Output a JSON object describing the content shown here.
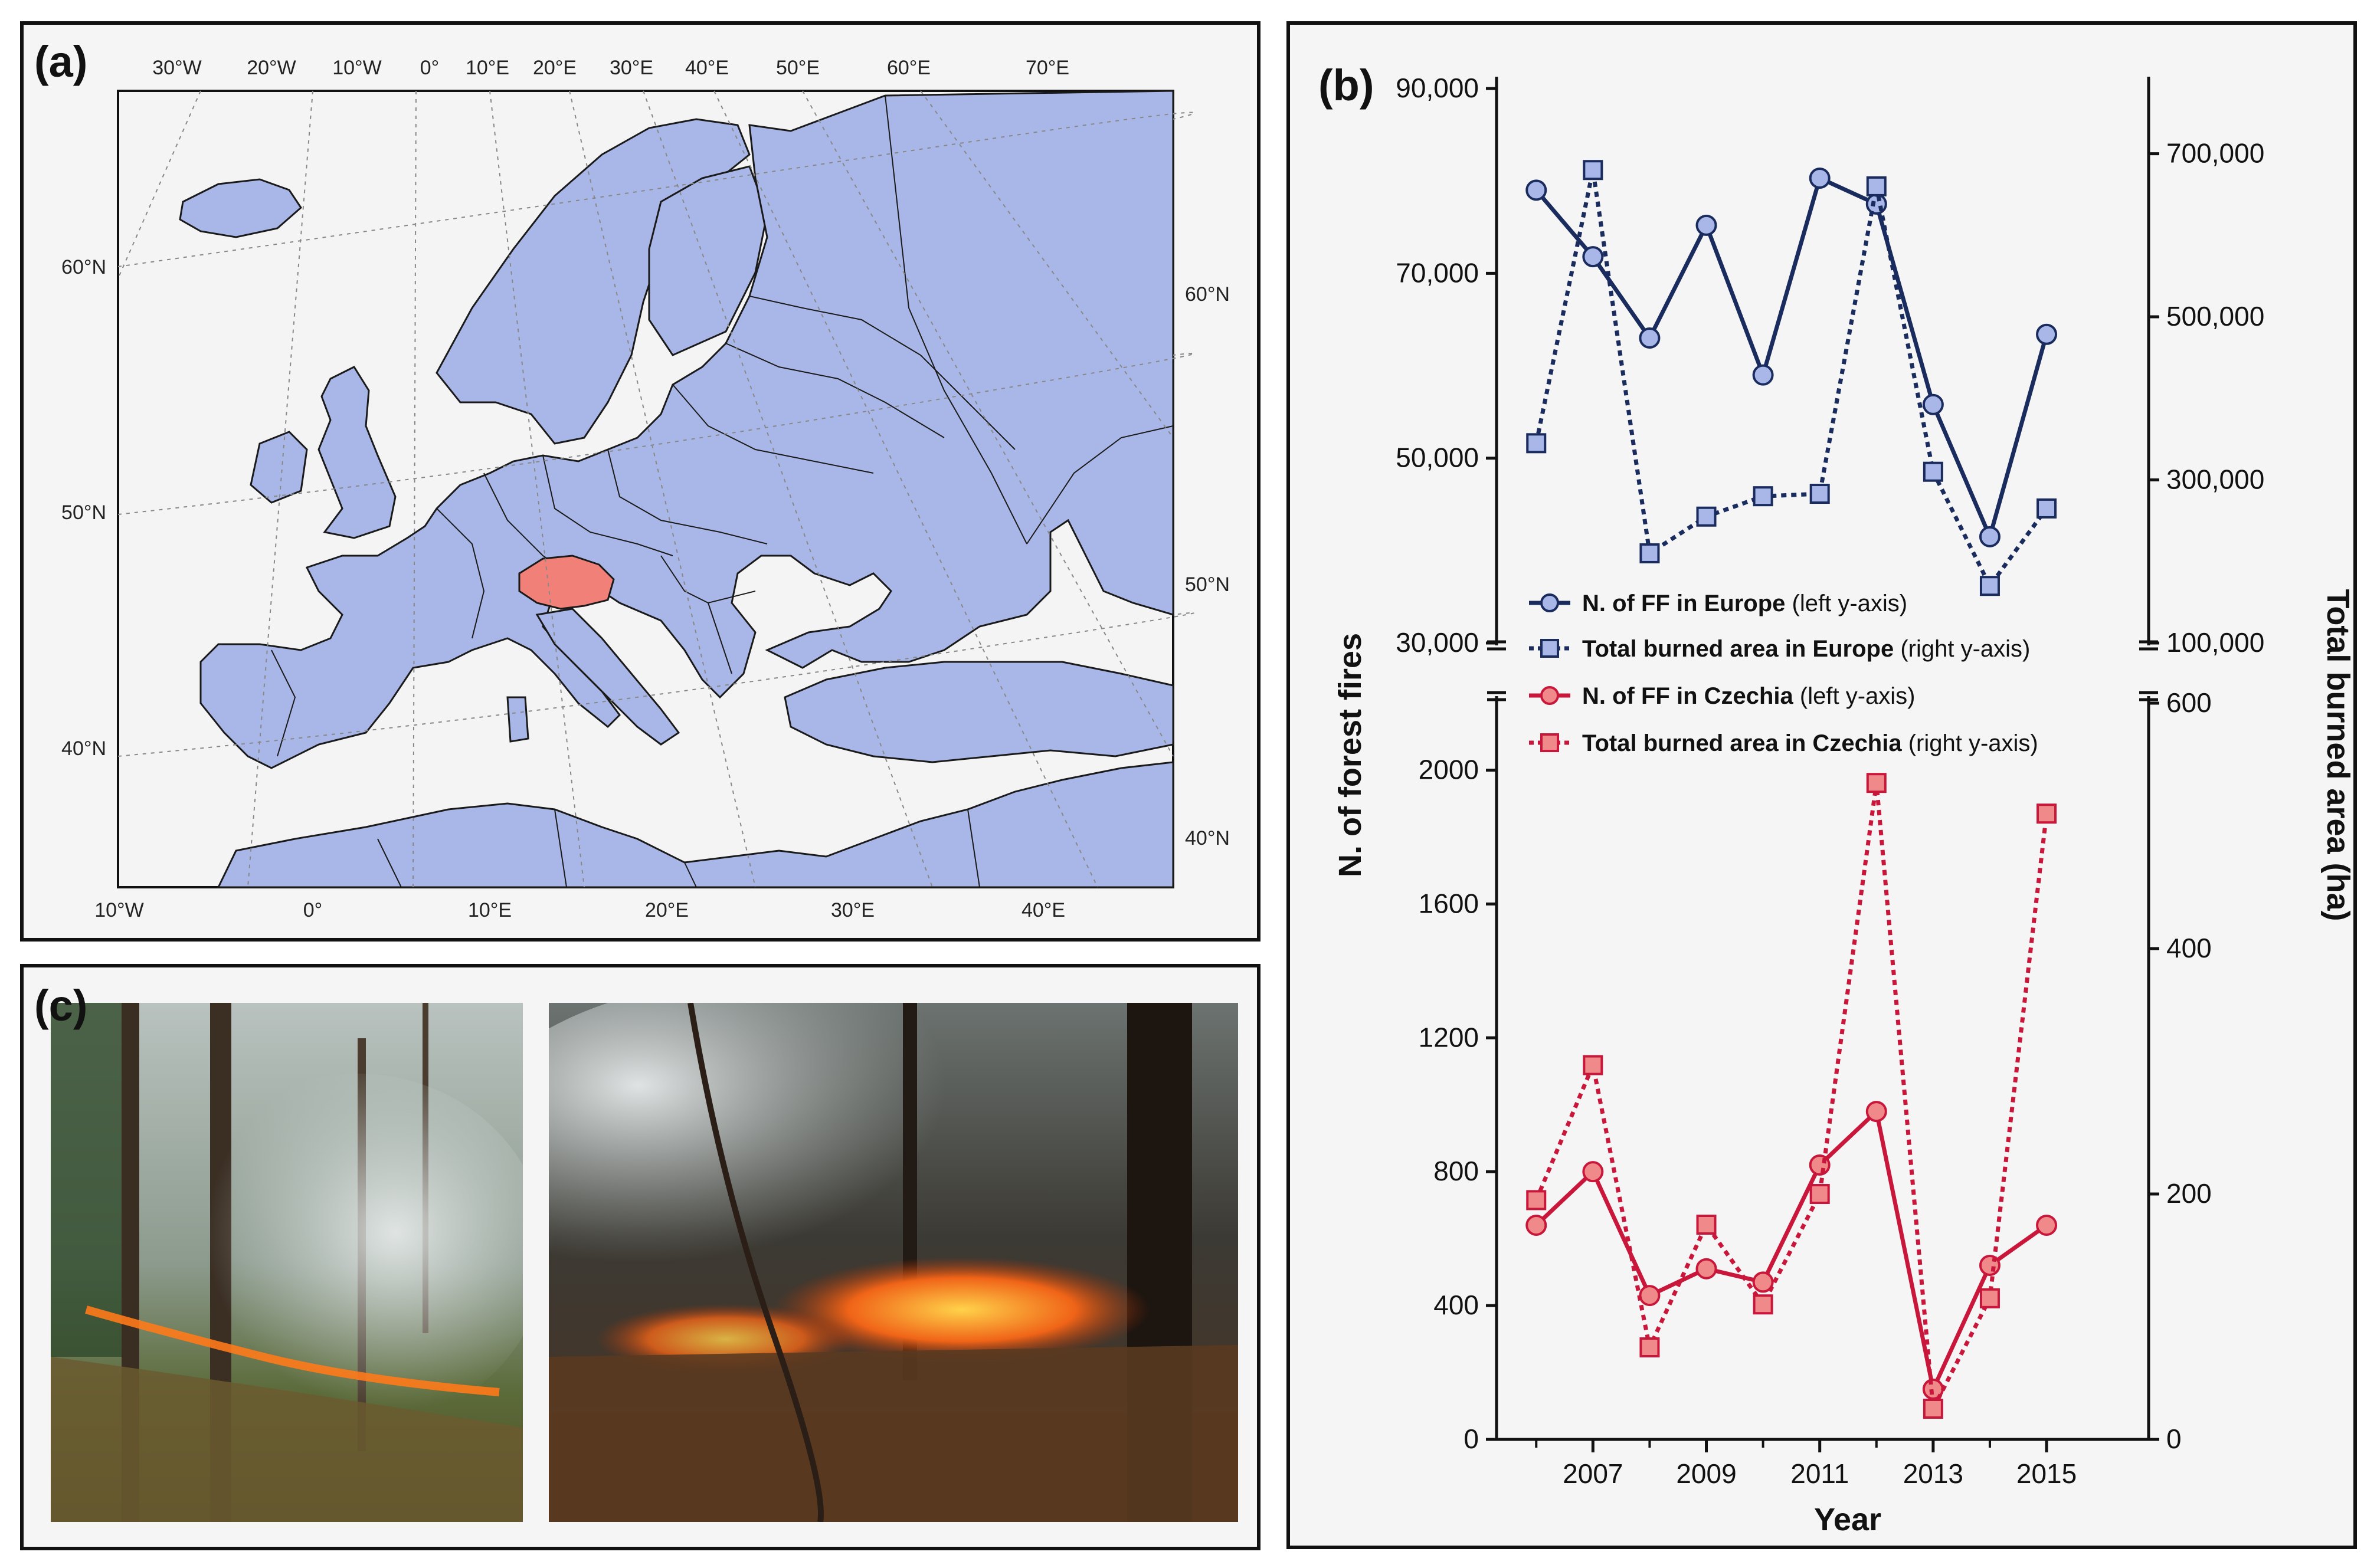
{
  "panel_a": {
    "letter": "(a)",
    "top_lon_labels": [
      "30°W",
      "20°W",
      "10°W",
      "0°",
      "10°E",
      "20°E",
      "30°E",
      "40°E",
      "50°E",
      "60°E",
      "70°E"
    ],
    "bottom_lon_labels": [
      "10°W",
      "0°",
      "10°E",
      "20°E",
      "30°E",
      "40°E"
    ],
    "left_lat_labels": [
      "60°N",
      "50°N",
      "40°N"
    ],
    "right_lat_labels": [
      "60°N",
      "50°N",
      "40°N"
    ],
    "colors": {
      "land": "#a9b7e8",
      "highlight": "#f08078",
      "sea": "#f4f4f4",
      "border": "#1a1a1a"
    }
  },
  "panel_c": {
    "letter": "(c)",
    "photos": [
      "forest-fire-photo-left",
      "forest-fire-photo-right"
    ]
  },
  "chart_data": {
    "letter": "(b)",
    "type": "line",
    "xlabel": "Year",
    "ylabel_left": "N. of forest fires",
    "ylabel_right": "Total burned area (ha)",
    "x": [
      2006,
      2007,
      2008,
      2009,
      2010,
      2011,
      2012,
      2013,
      2014,
      2015
    ],
    "x_ticks": [
      "2007",
      "2009",
      "2011",
      "2013",
      "2015"
    ],
    "x_range": [
      2005.3,
      2016.8
    ],
    "axis_break": true,
    "top_left_ticks": [
      "30,000",
      "50,000",
      "70,000",
      "90,000"
    ],
    "top_left_range": [
      30000,
      90000
    ],
    "top_right_ticks": [
      "100,000",
      "300,000",
      "500,000",
      "700,000"
    ],
    "top_right_range": [
      100000,
      780000
    ],
    "bottom_left_ticks": [
      "0",
      "400",
      "800",
      "1200",
      "1600",
      "2000"
    ],
    "bottom_left_range": [
      0,
      2200
    ],
    "bottom_right_ticks": [
      "0",
      "200",
      "400",
      "600"
    ],
    "bottom_right_range": [
      0,
      600
    ],
    "series": [
      {
        "name": "N. of FF in Europe",
        "axis_note": "(left y-axis)",
        "axis": "top_left",
        "values": [
          79000,
          71800,
          63000,
          75200,
          59000,
          80300,
          77500,
          55800,
          41500,
          63400
        ],
        "color": "#1a2b5e",
        "marker_fill": "#a9b7e8",
        "marker": "circle",
        "dash": "solid"
      },
      {
        "name": "Total burned area in Europe",
        "axis_note": "(right y-axis)",
        "axis": "top_right",
        "values": [
          345000,
          680000,
          210000,
          255000,
          280000,
          283000,
          660000,
          310000,
          170000,
          265000
        ],
        "color": "#1a2b5e",
        "marker_fill": "#a9b7e8",
        "marker": "square",
        "dash": "dotted"
      },
      {
        "name": "N. of FF in Czechia",
        "axis_note": "(left y-axis)",
        "axis": "bottom_left",
        "values": [
          640,
          800,
          430,
          510,
          470,
          820,
          980,
          150,
          520,
          640
        ],
        "color": "#c8173a",
        "marker_fill": "#f08a8a",
        "marker": "circle",
        "dash": "solid"
      },
      {
        "name": "Total burned area in Czechia",
        "axis_note": "(right y-axis)",
        "axis": "bottom_right",
        "values": [
          195,
          305,
          75,
          175,
          110,
          200,
          535,
          25,
          115,
          510
        ],
        "color": "#c8173a",
        "marker_fill": "#f08a8a",
        "marker": "square",
        "dash": "dotted"
      }
    ],
    "legend_position": "middle-center"
  }
}
